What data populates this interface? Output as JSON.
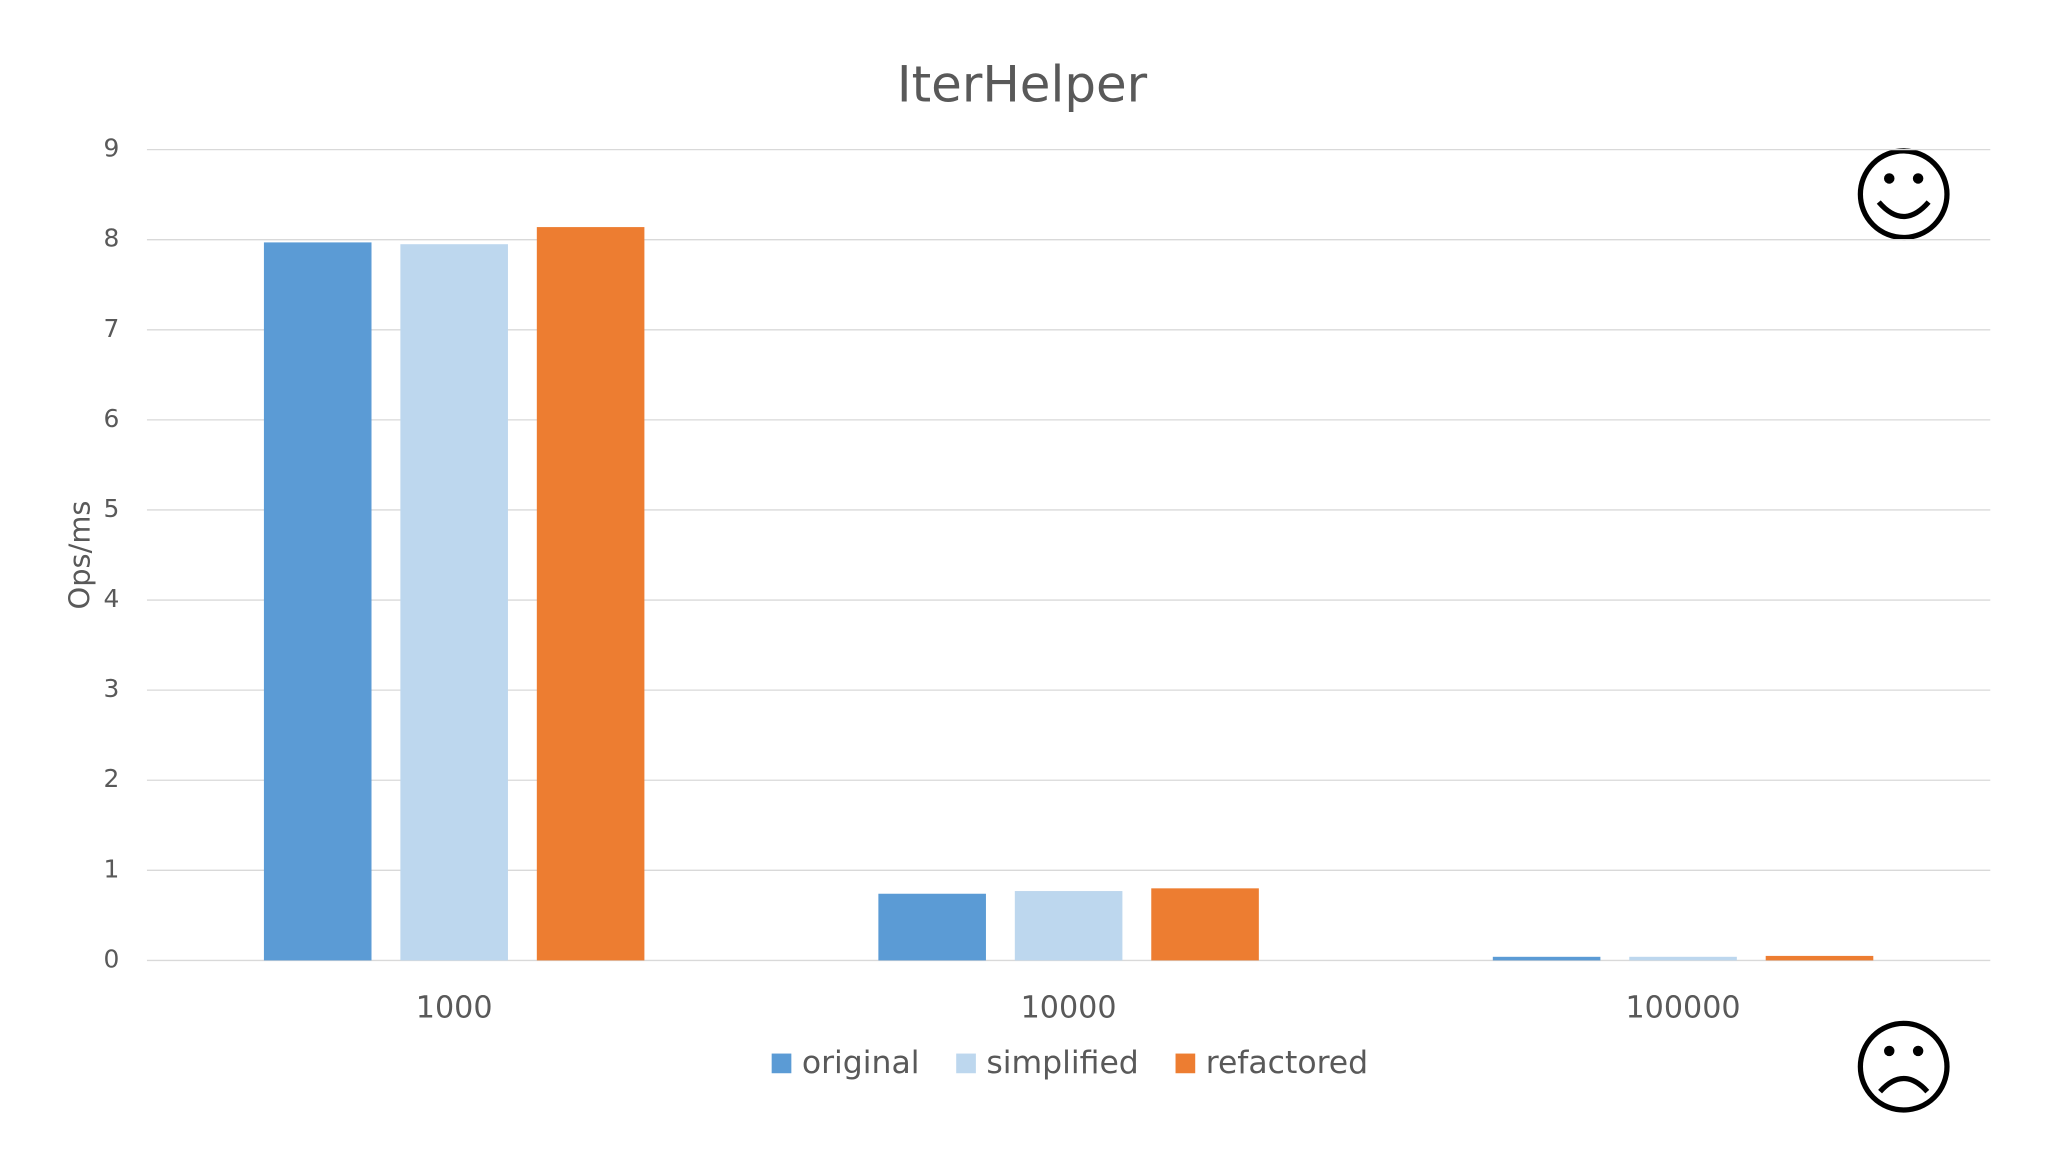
{
  "chart_data": {
    "type": "bar",
    "title": "IterHelper",
    "y_label": "Ops/ms",
    "categories": [
      "1000",
      "10000",
      "100000"
    ],
    "series": [
      {
        "name": "original",
        "color": "#5b9bd5",
        "values": [
          7.97,
          0.74,
          0.04
        ]
      },
      {
        "name": "simplified",
        "color": "#bdd7ee",
        "values": [
          7.95,
          0.77,
          0.04
        ]
      },
      {
        "name": "refactored",
        "color": "#ed7d31",
        "values": [
          8.14,
          0.8,
          0.05
        ]
      }
    ],
    "ylim": [
      0,
      9
    ],
    "yticks": [
      0,
      1,
      2,
      3,
      4,
      5,
      6,
      7,
      8,
      9
    ],
    "grid": true,
    "legend": "bottom"
  }
}
